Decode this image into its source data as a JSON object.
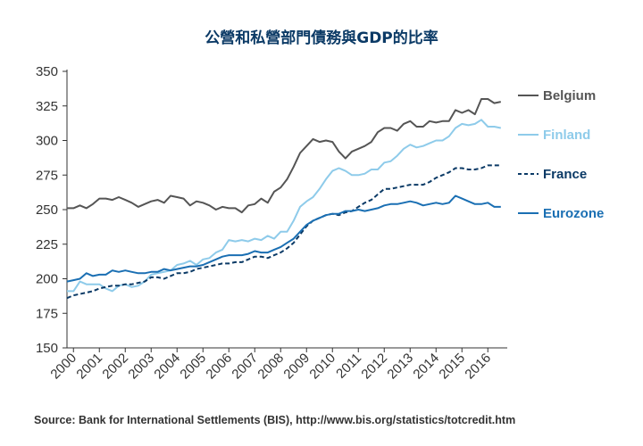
{
  "chart_data": {
    "type": "line",
    "title": "公營和私營部門債務與GDP的比率",
    "source": "Source: Bank for International Settlements (BIS), http://www.bis.org/statistics/totcredit.htm",
    "ylim": [
      150,
      350
    ],
    "yticks": [
      150,
      175,
      200,
      225,
      250,
      275,
      300,
      325,
      350
    ],
    "xlim": [
      1999.75,
      2016.75
    ],
    "xticks": [
      2000,
      2001,
      2002,
      2003,
      2004,
      2005,
      2006,
      2007,
      2008,
      2009,
      2010,
      2011,
      2012,
      2013,
      2014,
      2015,
      2016
    ],
    "xtick_labels": [
      "2000",
      "2001",
      "2002",
      "2003",
      "2004",
      "2005",
      "2006",
      "2007",
      "2008",
      "2009",
      "2010",
      "2011",
      "2012",
      "2013",
      "2014",
      "2015",
      "2016"
    ],
    "grid": false,
    "legend": "right",
    "series": [
      {
        "name": "Belgium",
        "color": "#555555",
        "dash": "solid",
        "values": [
          [
            1999.75,
            251
          ],
          [
            2000,
            251
          ],
          [
            2000.25,
            253
          ],
          [
            2000.5,
            251
          ],
          [
            2000.75,
            254
          ],
          [
            2001,
            258
          ],
          [
            2001.25,
            258
          ],
          [
            2001.5,
            257
          ],
          [
            2001.75,
            259
          ],
          [
            2002,
            257
          ],
          [
            2002.25,
            255
          ],
          [
            2002.5,
            252
          ],
          [
            2002.75,
            254
          ],
          [
            2003,
            256
          ],
          [
            2003.25,
            257
          ],
          [
            2003.5,
            255
          ],
          [
            2003.75,
            260
          ],
          [
            2004,
            259
          ],
          [
            2004.25,
            258
          ],
          [
            2004.5,
            253
          ],
          [
            2004.75,
            256
          ],
          [
            2005,
            255
          ],
          [
            2005.25,
            253
          ],
          [
            2005.5,
            250
          ],
          [
            2005.75,
            252
          ],
          [
            2006,
            251
          ],
          [
            2006.25,
            251
          ],
          [
            2006.5,
            248
          ],
          [
            2006.75,
            253
          ],
          [
            2007,
            254
          ],
          [
            2007.25,
            258
          ],
          [
            2007.5,
            255
          ],
          [
            2007.75,
            263
          ],
          [
            2008,
            266
          ],
          [
            2008.25,
            272
          ],
          [
            2008.5,
            281
          ],
          [
            2008.75,
            291
          ],
          [
            2009,
            296
          ],
          [
            2009.25,
            301
          ],
          [
            2009.5,
            299
          ],
          [
            2009.75,
            300
          ],
          [
            2010,
            299
          ],
          [
            2010.25,
            292
          ],
          [
            2010.5,
            287
          ],
          [
            2010.75,
            292
          ],
          [
            2011,
            294
          ],
          [
            2011.25,
            296
          ],
          [
            2011.5,
            299
          ],
          [
            2011.75,
            306
          ],
          [
            2012,
            309
          ],
          [
            2012.25,
            309
          ],
          [
            2012.5,
            307
          ],
          [
            2012.75,
            312
          ],
          [
            2013,
            314
          ],
          [
            2013.25,
            310
          ],
          [
            2013.5,
            310
          ],
          [
            2013.75,
            314
          ],
          [
            2014,
            313
          ],
          [
            2014.25,
            314
          ],
          [
            2014.5,
            314
          ],
          [
            2014.75,
            322
          ],
          [
            2015,
            320
          ],
          [
            2015.25,
            322
          ],
          [
            2015.5,
            319
          ],
          [
            2015.75,
            330
          ],
          [
            2016,
            330
          ],
          [
            2016.25,
            327
          ],
          [
            2016.5,
            328
          ]
        ]
      },
      {
        "name": "Finland",
        "color": "#8ecbea",
        "dash": "solid",
        "values": [
          [
            1999.75,
            191
          ],
          [
            2000,
            191
          ],
          [
            2000.25,
            198
          ],
          [
            2000.5,
            196
          ],
          [
            2000.75,
            196
          ],
          [
            2001,
            196
          ],
          [
            2001.25,
            193
          ],
          [
            2001.5,
            191
          ],
          [
            2001.75,
            195
          ],
          [
            2002,
            196
          ],
          [
            2002.25,
            194
          ],
          [
            2002.5,
            195
          ],
          [
            2002.75,
            198
          ],
          [
            2003,
            203
          ],
          [
            2003.25,
            204
          ],
          [
            2003.5,
            205
          ],
          [
            2003.75,
            206
          ],
          [
            2004,
            210
          ],
          [
            2004.25,
            211
          ],
          [
            2004.5,
            213
          ],
          [
            2004.75,
            210
          ],
          [
            2005,
            214
          ],
          [
            2005.25,
            215
          ],
          [
            2005.5,
            219
          ],
          [
            2005.75,
            221
          ],
          [
            2006,
            228
          ],
          [
            2006.25,
            227
          ],
          [
            2006.5,
            228
          ],
          [
            2006.75,
            227
          ],
          [
            2007,
            229
          ],
          [
            2007.25,
            228
          ],
          [
            2007.5,
            231
          ],
          [
            2007.75,
            229
          ],
          [
            2008,
            234
          ],
          [
            2008.25,
            234
          ],
          [
            2008.5,
            242
          ],
          [
            2008.75,
            252
          ],
          [
            2009,
            256
          ],
          [
            2009.25,
            259
          ],
          [
            2009.5,
            265
          ],
          [
            2009.75,
            272
          ],
          [
            2010,
            278
          ],
          [
            2010.25,
            280
          ],
          [
            2010.5,
            278
          ],
          [
            2010.75,
            275
          ],
          [
            2011,
            275
          ],
          [
            2011.25,
            276
          ],
          [
            2011.5,
            279
          ],
          [
            2011.75,
            279
          ],
          [
            2012,
            284
          ],
          [
            2012.25,
            285
          ],
          [
            2012.5,
            289
          ],
          [
            2012.75,
            294
          ],
          [
            2013,
            297
          ],
          [
            2013.25,
            295
          ],
          [
            2013.5,
            296
          ],
          [
            2013.75,
            298
          ],
          [
            2014,
            300
          ],
          [
            2014.25,
            300
          ],
          [
            2014.5,
            303
          ],
          [
            2014.75,
            309
          ],
          [
            2015,
            312
          ],
          [
            2015.25,
            311
          ],
          [
            2015.5,
            312
          ],
          [
            2015.75,
            315
          ],
          [
            2016,
            310
          ],
          [
            2016.25,
            310
          ],
          [
            2016.5,
            309
          ]
        ]
      },
      {
        "name": "France",
        "color": "#0b3a66",
        "dash": "dashed",
        "values": [
          [
            1999.75,
            186
          ],
          [
            2000,
            188
          ],
          [
            2000.25,
            189
          ],
          [
            2000.5,
            190
          ],
          [
            2000.75,
            191
          ],
          [
            2001,
            193
          ],
          [
            2001.25,
            194
          ],
          [
            2001.5,
            195
          ],
          [
            2001.75,
            195
          ],
          [
            2002,
            196
          ],
          [
            2002.25,
            196
          ],
          [
            2002.5,
            197
          ],
          [
            2002.75,
            198
          ],
          [
            2003,
            201
          ],
          [
            2003.25,
            201
          ],
          [
            2003.5,
            200
          ],
          [
            2003.75,
            202
          ],
          [
            2004,
            204
          ],
          [
            2004.25,
            204
          ],
          [
            2004.5,
            205
          ],
          [
            2004.75,
            207
          ],
          [
            2005,
            208
          ],
          [
            2005.25,
            209
          ],
          [
            2005.5,
            210
          ],
          [
            2005.75,
            211
          ],
          [
            2006,
            211
          ],
          [
            2006.25,
            212
          ],
          [
            2006.5,
            212
          ],
          [
            2006.75,
            214
          ],
          [
            2007,
            216
          ],
          [
            2007.25,
            216
          ],
          [
            2007.5,
            215
          ],
          [
            2007.75,
            217
          ],
          [
            2008,
            219
          ],
          [
            2008.25,
            222
          ],
          [
            2008.5,
            226
          ],
          [
            2008.75,
            232
          ],
          [
            2009,
            238
          ],
          [
            2009.25,
            242
          ],
          [
            2009.5,
            244
          ],
          [
            2009.75,
            246
          ],
          [
            2010,
            247
          ],
          [
            2010.25,
            246
          ],
          [
            2010.5,
            248
          ],
          [
            2010.75,
            249
          ],
          [
            2011,
            252
          ],
          [
            2011.25,
            255
          ],
          [
            2011.5,
            257
          ],
          [
            2011.75,
            261
          ],
          [
            2012,
            265
          ],
          [
            2012.25,
            265
          ],
          [
            2012.5,
            266
          ],
          [
            2012.75,
            267
          ],
          [
            2013,
            268
          ],
          [
            2013.25,
            268
          ],
          [
            2013.5,
            268
          ],
          [
            2013.75,
            270
          ],
          [
            2014,
            273
          ],
          [
            2014.25,
            275
          ],
          [
            2014.5,
            277
          ],
          [
            2014.75,
            280
          ],
          [
            2015,
            280
          ],
          [
            2015.25,
            279
          ],
          [
            2015.5,
            279
          ],
          [
            2015.75,
            280
          ],
          [
            2016,
            282
          ],
          [
            2016.25,
            282
          ],
          [
            2016.5,
            282
          ]
        ]
      },
      {
        "name": "Eurozone",
        "color": "#1a6fb3",
        "dash": "solid",
        "values": [
          [
            1999.75,
            198
          ],
          [
            2000,
            199
          ],
          [
            2000.25,
            200
          ],
          [
            2000.5,
            204
          ],
          [
            2000.75,
            202
          ],
          [
            2001,
            203
          ],
          [
            2001.25,
            203
          ],
          [
            2001.5,
            206
          ],
          [
            2001.75,
            205
          ],
          [
            2002,
            206
          ],
          [
            2002.25,
            205
          ],
          [
            2002.5,
            204
          ],
          [
            2002.75,
            204
          ],
          [
            2003,
            205
          ],
          [
            2003.25,
            205
          ],
          [
            2003.5,
            207
          ],
          [
            2003.75,
            206
          ],
          [
            2004,
            207
          ],
          [
            2004.25,
            208
          ],
          [
            2004.5,
            209
          ],
          [
            2004.75,
            209
          ],
          [
            2005,
            210
          ],
          [
            2005.25,
            212
          ],
          [
            2005.5,
            214
          ],
          [
            2005.75,
            216
          ],
          [
            2006,
            217
          ],
          [
            2006.25,
            217
          ],
          [
            2006.5,
            217
          ],
          [
            2006.75,
            218
          ],
          [
            2007,
            220
          ],
          [
            2007.25,
            219
          ],
          [
            2007.5,
            219
          ],
          [
            2007.75,
            221
          ],
          [
            2008,
            223
          ],
          [
            2008.25,
            226
          ],
          [
            2008.5,
            229
          ],
          [
            2008.75,
            234
          ],
          [
            2009,
            239
          ],
          [
            2009.25,
            242
          ],
          [
            2009.5,
            244
          ],
          [
            2009.75,
            246
          ],
          [
            2010,
            247
          ],
          [
            2010.25,
            247
          ],
          [
            2010.5,
            249
          ],
          [
            2010.75,
            249
          ],
          [
            2011,
            250
          ],
          [
            2011.25,
            249
          ],
          [
            2011.5,
            250
          ],
          [
            2011.75,
            251
          ],
          [
            2012,
            253
          ],
          [
            2012.25,
            254
          ],
          [
            2012.5,
            254
          ],
          [
            2012.75,
            255
          ],
          [
            2013,
            256
          ],
          [
            2013.25,
            255
          ],
          [
            2013.5,
            253
          ],
          [
            2013.75,
            254
          ],
          [
            2014,
            255
          ],
          [
            2014.25,
            254
          ],
          [
            2014.5,
            255
          ],
          [
            2014.75,
            260
          ],
          [
            2015,
            258
          ],
          [
            2015.25,
            256
          ],
          [
            2015.5,
            254
          ],
          [
            2015.75,
            254
          ],
          [
            2016,
            255
          ],
          [
            2016.25,
            252
          ],
          [
            2016.5,
            252
          ]
        ]
      }
    ]
  }
}
